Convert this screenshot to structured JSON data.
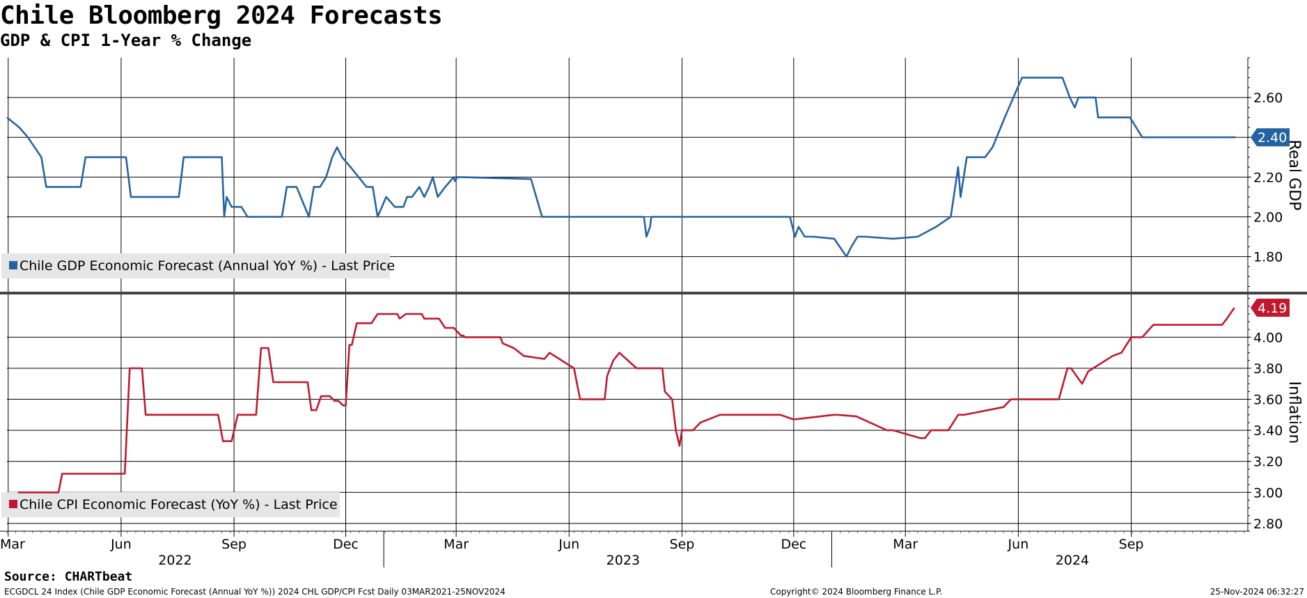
{
  "header": {
    "title": "Chile Bloomberg 2024 Forecasts",
    "subtitle": "GDP & CPI 1-Year % Change"
  },
  "footer": {
    "source": "Source: CHARTbeat",
    "left": "ECGDCL 24 Index (Chile GDP Economic Forecast (Annual YoY %)) 2024 CHL GDP/CPI Fcst  Daily 03MAR2021-25NOV2024",
    "center": "Copyright© 2024 Bloomberg Finance L.P.",
    "right": "25-Nov-2024 06:32:27"
  },
  "colors": {
    "gdp": "#2463a1",
    "cpi": "#c0182e",
    "grid": "#000000",
    "legend_bg": "#e6e6e6",
    "divider": "#444444"
  },
  "chart_data": [
    {
      "type": "line",
      "ylabel": "Real GDP",
      "ylim": [
        1.62,
        2.8
      ],
      "yticks": [
        1.8,
        2.0,
        2.2,
        2.4,
        2.6
      ],
      "ytick_labels": [
        "1.80",
        "2.00",
        "2.20",
        "2.40",
        "2.60"
      ],
      "last_value": 2.4,
      "last_label": "2.40",
      "legend_position": "bottom-left",
      "grid": true,
      "series": [
        {
          "name": "Chile GDP Economic Forecast (Annual YoY %) - Last Price",
          "x": [
            "2022-02-28",
            "2022-03-10",
            "2022-03-17",
            "2022-03-28",
            "2022-04-01",
            "2022-04-29",
            "2022-05-03",
            "2022-06-05",
            "2022-06-09",
            "2022-07-18",
            "2022-07-22",
            "2022-08-22",
            "2022-08-24",
            "2022-08-26",
            "2022-08-30",
            "2022-09-07",
            "2022-09-12",
            "2022-10-10",
            "2022-10-14",
            "2022-10-22",
            "2022-11-01",
            "2022-11-05",
            "2022-11-10",
            "2022-11-15",
            "2022-11-20",
            "2022-11-24",
            "2022-11-28",
            "2022-12-05",
            "2022-12-18",
            "2022-12-23",
            "2022-12-27",
            "2023-01-03",
            "2023-01-10",
            "2023-01-17",
            "2023-01-20",
            "2023-01-24",
            "2023-01-30",
            "2023-02-03",
            "2023-02-07",
            "2023-02-10",
            "2023-02-14",
            "2023-02-20",
            "2023-02-27",
            "2023-02-28",
            "2023-03-02",
            "2023-03-05",
            "2023-05-01",
            "2023-05-10",
            "2023-08-01",
            "2023-08-03",
            "2023-08-06",
            "2023-08-07",
            "2023-11-28",
            "2023-12-02",
            "2023-12-05",
            "2023-12-10",
            "2023-12-17",
            "2024-01-03",
            "2024-01-13",
            "2024-01-17",
            "2024-01-22",
            "2024-01-28",
            "2024-02-20",
            "2024-03-11",
            "2024-03-26",
            "2024-04-07",
            "2024-04-13",
            "2024-04-15",
            "2024-04-20",
            "2024-04-26",
            "2024-05-05",
            "2024-05-11",
            "2024-05-21",
            "2024-05-28",
            "2024-06-04",
            "2024-07-07",
            "2024-07-13",
            "2024-07-17",
            "2024-07-20",
            "2024-08-03",
            "2024-08-05",
            "2024-08-31",
            "2024-09-05",
            "2024-09-10",
            "2024-11-25"
          ],
          "values": [
            2.5,
            2.45,
            2.4,
            2.3,
            2.15,
            2.15,
            2.3,
            2.3,
            2.1,
            2.1,
            2.3,
            2.3,
            2.0,
            2.1,
            2.05,
            2.05,
            2.0,
            2.0,
            2.15,
            2.15,
            2.0,
            2.15,
            2.15,
            2.2,
            2.3,
            2.35,
            2.3,
            2.25,
            2.15,
            2.15,
            2.0,
            2.1,
            2.05,
            2.05,
            2.1,
            2.1,
            2.15,
            2.1,
            2.15,
            2.2,
            2.1,
            2.15,
            2.2,
            2.18,
            2.2,
            2.2,
            2.19,
            2.0,
            2.0,
            1.9,
            1.95,
            2.0,
            2.0,
            1.9,
            1.95,
            1.9,
            1.9,
            1.89,
            1.8,
            1.85,
            1.9,
            1.9,
            1.89,
            1.9,
            1.95,
            2.0,
            2.25,
            2.1,
            2.3,
            2.3,
            2.3,
            2.35,
            2.5,
            2.6,
            2.7,
            2.7,
            2.6,
            2.55,
            2.6,
            2.6,
            2.5,
            2.5,
            2.45,
            2.4,
            2.4
          ]
        }
      ]
    },
    {
      "type": "line",
      "ylabel": "Inflation",
      "ylim": [
        2.75,
        4.28
      ],
      "yticks": [
        2.8,
        3.0,
        3.2,
        3.4,
        3.6,
        3.8,
        4.0
      ],
      "ytick_labels": [
        "2.80",
        "3.00",
        "3.20",
        "3.40",
        "3.60",
        "3.80",
        "4.00"
      ],
      "last_value": 4.19,
      "last_label": "4.19",
      "legend_position": "bottom-left",
      "grid": true,
      "x_axis": {
        "month_labels": [
          "Mar",
          "Jun",
          "Sep",
          "Dec",
          "Mar",
          "Jun",
          "Sep",
          "Dec",
          "Mar",
          "Jun",
          "Sep"
        ],
        "month_dates": [
          "2022-03-01",
          "2022-06-01",
          "2022-09-01",
          "2022-12-01",
          "2023-03-01",
          "2023-06-01",
          "2023-09-01",
          "2023-12-01",
          "2024-03-01",
          "2024-06-01",
          "2024-09-01"
        ],
        "year_labels": [
          "2022",
          "2023",
          "2024"
        ],
        "year_label_dates": [
          "2022-07-15",
          "2023-07-15",
          "2024-07-15"
        ],
        "year_boundaries": [
          "2023-01-01",
          "2024-01-01"
        ],
        "range": [
          "2022-02-28",
          "2024-12-05"
        ]
      },
      "series": [
        {
          "name": "Chile CPI Economic Forecast (YoY %) - Last Price",
          "x": [
            "2022-03-09",
            "2022-04-11",
            "2022-04-14",
            "2022-06-04",
            "2022-06-08",
            "2022-06-18",
            "2022-06-21",
            "2022-08-19",
            "2022-08-23",
            "2022-08-30",
            "2022-09-04",
            "2022-09-19",
            "2022-09-23",
            "2022-09-29",
            "2022-10-03",
            "2022-10-31",
            "2022-11-03",
            "2022-11-07",
            "2022-11-11",
            "2022-11-18",
            "2022-11-22",
            "2022-11-25",
            "2022-11-29",
            "2022-12-01",
            "2022-12-04",
            "2022-12-06",
            "2022-12-10",
            "2022-12-22",
            "2022-12-27",
            "2023-01-12",
            "2023-01-14",
            "2023-01-19",
            "2023-02-01",
            "2023-02-03",
            "2023-02-15",
            "2023-02-20",
            "2023-02-27",
            "2023-03-05",
            "2023-03-07",
            "2023-03-08",
            "2023-04-06",
            "2023-04-08",
            "2023-04-17",
            "2023-04-25",
            "2023-05-12",
            "2023-05-16",
            "2023-06-05",
            "2023-06-10",
            "2023-06-30",
            "2023-07-02",
            "2023-07-07",
            "2023-07-12",
            "2023-07-26",
            "2023-08-16",
            "2023-08-18",
            "2023-08-24",
            "2023-08-27",
            "2023-08-30",
            "2023-09-01",
            "2023-09-10",
            "2023-09-16",
            "2023-10-02",
            "2023-11-20",
            "2023-12-01",
            "2024-01-03",
            "2024-01-05",
            "2024-01-21",
            "2024-02-15",
            "2024-02-20",
            "2024-03-13",
            "2024-03-17",
            "2024-03-22",
            "2024-04-05",
            "2024-04-09",
            "2024-04-13",
            "2024-04-18",
            "2024-05-20",
            "2024-05-26",
            "2024-07-04",
            "2024-07-11",
            "2024-07-14",
            "2024-07-23",
            "2024-07-28",
            "2024-08-17",
            "2024-08-24",
            "2024-09-01",
            "2024-09-10",
            "2024-09-19",
            "2024-11-14",
            "2024-11-18",
            "2024-11-24"
          ],
          "values": [
            3.0,
            3.0,
            3.12,
            3.12,
            3.8,
            3.8,
            3.5,
            3.5,
            3.33,
            3.33,
            3.5,
            3.5,
            3.93,
            3.93,
            3.71,
            3.71,
            3.53,
            3.53,
            3.62,
            3.62,
            3.59,
            3.59,
            3.56,
            3.56,
            3.95,
            3.95,
            4.09,
            4.09,
            4.15,
            4.15,
            4.12,
            4.15,
            4.15,
            4.12,
            4.12,
            4.06,
            4.06,
            4.01,
            4.01,
            4.0,
            4.0,
            3.96,
            3.93,
            3.88,
            3.86,
            3.9,
            3.8,
            3.6,
            3.6,
            3.75,
            3.85,
            3.9,
            3.8,
            3.8,
            3.65,
            3.6,
            3.4,
            3.3,
            3.4,
            3.4,
            3.45,
            3.5,
            3.5,
            3.47,
            3.5,
            3.5,
            3.49,
            3.4,
            3.4,
            3.35,
            3.35,
            3.4,
            3.4,
            3.45,
            3.5,
            3.5,
            3.55,
            3.6,
            3.6,
            3.8,
            3.8,
            3.7,
            3.78,
            3.88,
            3.9,
            4.0,
            4.0,
            4.08,
            4.08,
            4.12,
            4.19
          ]
        }
      ]
    }
  ]
}
